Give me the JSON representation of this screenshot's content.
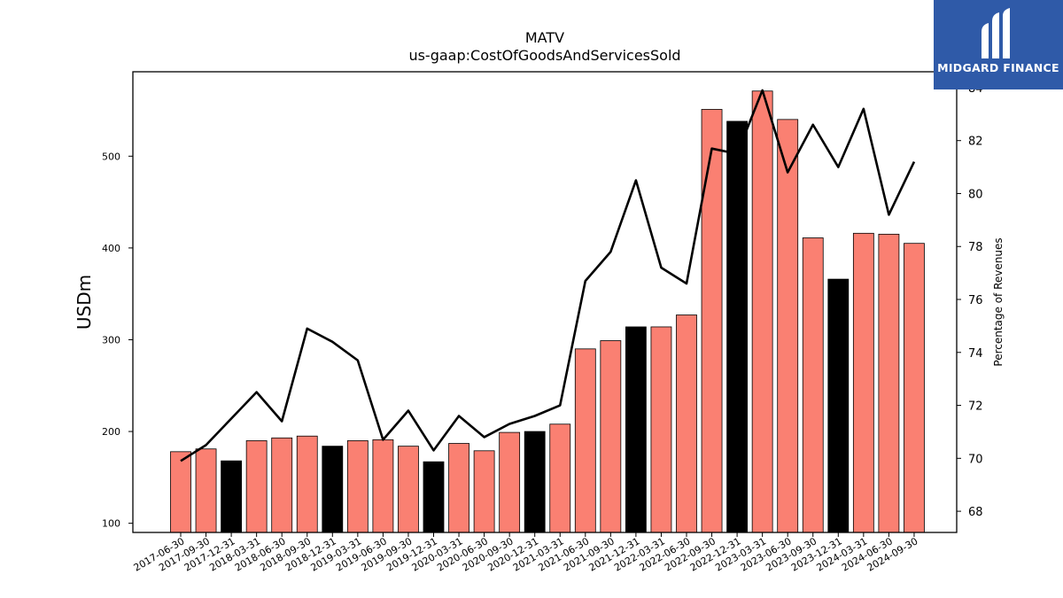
{
  "chart_data": {
    "type": "bar",
    "title": "MATV",
    "subtitle": "us-gaap:CostOfGoodsAndServicesSold",
    "ylabel": "USDm",
    "y2label": "Percentage of Revenues",
    "categories": [
      "2017-06-30",
      "2017-09-30",
      "2017-12-31",
      "2018-03-31",
      "2018-06-30",
      "2018-09-30",
      "2018-12-31",
      "2019-03-31",
      "2019-06-30",
      "2019-09-30",
      "2019-12-31",
      "2020-03-31",
      "2020-06-30",
      "2020-09-30",
      "2020-12-31",
      "2021-03-31",
      "2021-06-30",
      "2021-09-30",
      "2021-12-31",
      "2022-03-31",
      "2022-06-30",
      "2022-09-30",
      "2022-12-31",
      "2023-03-31",
      "2023-06-30",
      "2023-09-30",
      "2023-12-31",
      "2024-03-31",
      "2024-06-30",
      "2024-09-30"
    ],
    "series": [
      {
        "kind": "bar",
        "axis": "left",
        "values": [
          178,
          181,
          168,
          190,
          193,
          195,
          184,
          190,
          191,
          184,
          167,
          187,
          179,
          199,
          200,
          208,
          290,
          299,
          314,
          314,
          327,
          551,
          538,
          571,
          540,
          411,
          366,
          416,
          415,
          405
        ],
        "highlight": [
          false,
          false,
          true,
          false,
          false,
          false,
          true,
          false,
          false,
          false,
          true,
          false,
          false,
          false,
          true,
          false,
          false,
          false,
          true,
          false,
          false,
          false,
          true,
          false,
          false,
          false,
          true,
          false,
          false,
          false
        ]
      },
      {
        "kind": "line",
        "axis": "right",
        "values": [
          69.9,
          70.5,
          71.5,
          72.5,
          71.4,
          74.9,
          74.4,
          73.7,
          70.7,
          71.8,
          70.3,
          71.6,
          70.8,
          71.3,
          71.6,
          72.0,
          76.7,
          77.8,
          80.5,
          77.2,
          76.6,
          81.7,
          81.5,
          83.9,
          80.8,
          82.6,
          81.0,
          83.2,
          79.2,
          81.2
        ]
      }
    ],
    "ylim": [
      90,
      592
    ],
    "y2lim": [
      67.2,
      84.6
    ],
    "yticks": [
      100,
      200,
      300,
      400,
      500
    ],
    "y2ticks": [
      68,
      70,
      72,
      74,
      76,
      78,
      80,
      82,
      84
    ],
    "colors": {
      "bar": "#fa8072",
      "bar_highlight": "#000000",
      "line": "#000000"
    },
    "grid": false,
    "legend": "none"
  },
  "logo": {
    "text": "MIDGARD FINANCE",
    "icon": "midgard-logo-icon",
    "background": "#2f5aa8"
  }
}
